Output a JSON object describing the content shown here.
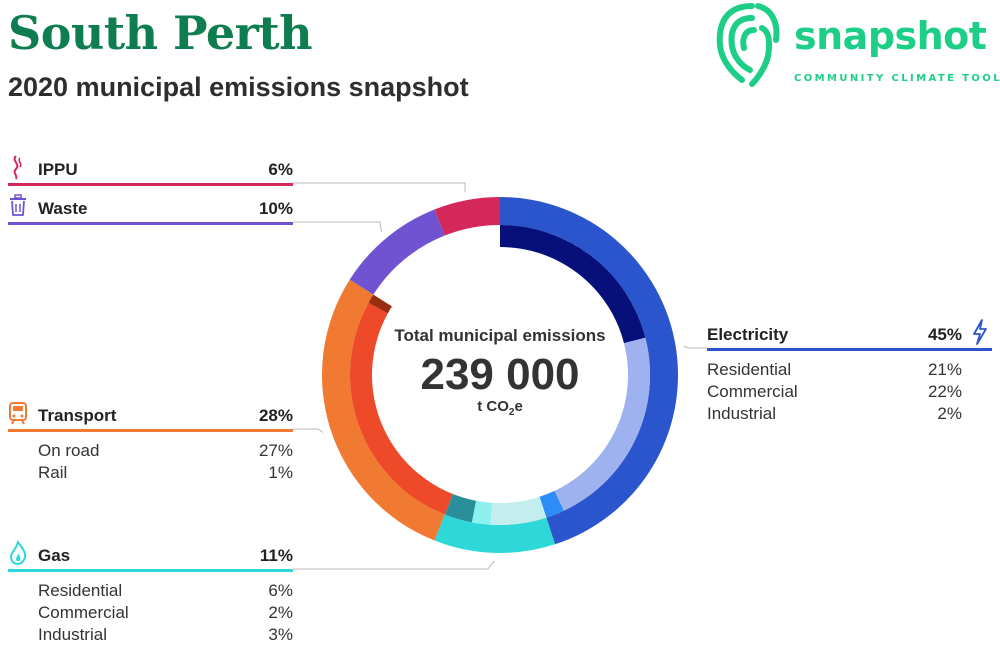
{
  "title": "South Perth",
  "subtitle": "2020 municipal emissions snapshot",
  "logo": {
    "word": "snapshot",
    "tagline": "COMMUNITY CLIMATE TOOL"
  },
  "center": {
    "label": "Total municipal emissions",
    "value": "239 000",
    "unit_prefix": "t CO",
    "unit_sub": "2",
    "unit_suffix": "e"
  },
  "colors": {
    "brand": "#0e7d4f",
    "logo": "#1dcf86",
    "electricity": "#2a55cc",
    "gas": "#2ed8d8",
    "transport": "#f07a32",
    "waste": "#7053d1",
    "ippu": "#d4285a"
  },
  "categories": {
    "ippu": {
      "name": "IPPU",
      "pct": "6%",
      "icon": "smoke-icon"
    },
    "waste": {
      "name": "Waste",
      "pct": "10%",
      "icon": "trash-bin-icon"
    },
    "transport": {
      "name": "Transport",
      "pct": "28%",
      "icon": "train-icon",
      "items": [
        {
          "n": "On road",
          "v": "27%"
        },
        {
          "n": "Rail",
          "v": "1%"
        }
      ]
    },
    "gas": {
      "name": "Gas",
      "pct": "11%",
      "icon": "flame-icon",
      "items": [
        {
          "n": "Residential",
          "v": "6%"
        },
        {
          "n": "Commercial",
          "v": "2%"
        },
        {
          "n": "Industrial",
          "v": "3%"
        }
      ]
    },
    "electricity": {
      "name": "Electricity",
      "pct": "45%",
      "icon": "lightning-icon",
      "items": [
        {
          "n": "Residential",
          "v": "21%"
        },
        {
          "n": "Commercial",
          "v": "22%"
        },
        {
          "n": "Industrial",
          "v": "2%"
        }
      ]
    }
  },
  "chart_data": {
    "type": "pie",
    "donut": true,
    "total": 239000,
    "unit": "t CO2e",
    "series": [
      {
        "name": "Electricity",
        "value": 45,
        "color": "#2a55cc",
        "sub": [
          {
            "name": "Residential",
            "value": 21,
            "color": "#07107a"
          },
          {
            "name": "Commercial",
            "value": 22,
            "color": "#9eb2ef"
          },
          {
            "name": "Industrial",
            "value": 2,
            "color": "#2d8cf5"
          }
        ]
      },
      {
        "name": "Gas",
        "value": 11,
        "color": "#2ed8d8",
        "sub": [
          {
            "name": "Residential",
            "value": 6,
            "color": "#c4eeee"
          },
          {
            "name": "Commercial",
            "value": 2,
            "color": "#8ff0f0"
          },
          {
            "name": "Industrial",
            "value": 3,
            "color": "#2a8f9a"
          }
        ]
      },
      {
        "name": "Transport",
        "value": 28,
        "color": "#f07a32",
        "sub": [
          {
            "name": "On road",
            "value": 27,
            "color": "#ee4a2a"
          },
          {
            "name": "Rail",
            "value": 1,
            "color": "#9a2c10"
          }
        ]
      },
      {
        "name": "Waste",
        "value": 10,
        "color": "#7053d1",
        "sub": []
      },
      {
        "name": "IPPU",
        "value": 6,
        "color": "#d4285a",
        "sub": []
      }
    ]
  }
}
